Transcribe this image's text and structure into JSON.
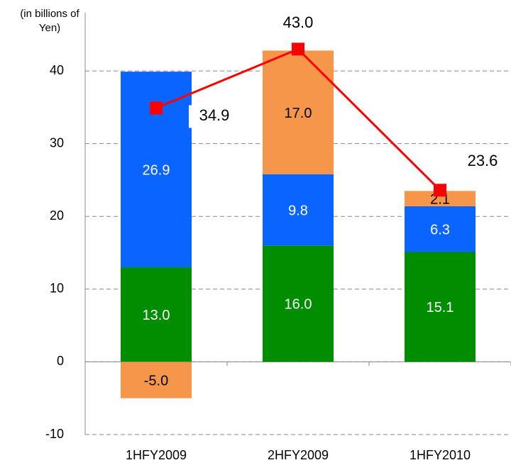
{
  "chart_data": {
    "type": "stacked-bar-line",
    "y_label": [
      "(in billions of",
      "Yen)"
    ],
    "categories": [
      "1HFY2009",
      "2HFY2009",
      "1HFY2010"
    ],
    "series": [
      {
        "color": "#008e00",
        "label_color": "#ffffff",
        "values": [
          13.0,
          16.0,
          15.1
        ],
        "value_labels": [
          "13.0",
          "16.0",
          "15.1"
        ]
      },
      {
        "color": "#0a64ff",
        "label_color": "#ffffff",
        "values": [
          26.9,
          9.8,
          6.3
        ],
        "value_labels": [
          "26.9",
          "9.8",
          "6.3"
        ]
      },
      {
        "color": "#f5964b",
        "label_color": "#000000",
        "values": [
          -5.0,
          17.0,
          2.1
        ],
        "value_labels": [
          "-5.0",
          "17.0",
          "2.1"
        ]
      }
    ],
    "line": {
      "color": "#ff0000",
      "values": [
        34.9,
        43.0,
        23.6
      ],
      "value_labels": [
        "34.9",
        "43.0",
        "23.6"
      ]
    },
    "ylim": [
      -10,
      48
    ],
    "yticks": [
      -10,
      0,
      10,
      20,
      30,
      40
    ],
    "grid": true
  }
}
